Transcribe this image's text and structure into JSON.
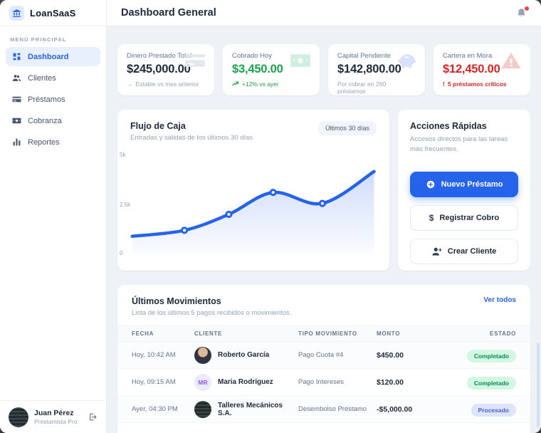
{
  "colors": {
    "accent": "#2563eb",
    "success": "#16a34a",
    "danger": "#dc2626",
    "navy": "#1e293b"
  },
  "sidebar": {
    "logo": {
      "label": "LoanSaaS",
      "icon": "bank-icon"
    },
    "section_label": "MENÚ PRINCIPAL",
    "items": [
      {
        "label": "Dashboard",
        "icon": "dashboard-grid-icon",
        "active": true
      },
      {
        "label": "Clientes",
        "icon": "users-icon",
        "active": false
      },
      {
        "label": "Préstamos",
        "icon": "credit-card-icon",
        "active": false
      },
      {
        "label": "Cobranza",
        "icon": "banknote-icon",
        "active": false
      },
      {
        "label": "Reportes",
        "icon": "bar-chart-icon",
        "active": false
      }
    ],
    "user": {
      "name": "Juan Pérez",
      "role": "Prestamista Pro",
      "logout_icon": "logout-icon"
    }
  },
  "header": {
    "title": "Dashboard General",
    "notification_icon": "bell-icon",
    "has_alert_dot": true
  },
  "stats": [
    {
      "label": "Dinero Prestado Total",
      "value": "$245,000.00",
      "sub_glyph": "→",
      "sub": "Estable vs mes anterior",
      "bg_icon": "credit-card-icon",
      "value_color": "#1e293b",
      "sub_color": "#94a3b8",
      "bg_icon_color": "#e3e8ef"
    },
    {
      "label": "Cobrado Hoy",
      "value": "$3,450.00",
      "sub_glyph": "",
      "sub": "+12% vs ayer",
      "bg_icon": "banknote-icon",
      "value_color": "#16a34a",
      "sub_color": "#16a34a",
      "bg_icon_color": "#cfeedd"
    },
    {
      "label": "Capital Pendiente",
      "value": "$142,800.00",
      "sub_glyph": "",
      "sub": "Por cobrar en 260 préstamos",
      "bg_icon": "piggy-bank-icon",
      "value_color": "#1e293b",
      "sub_color": "#94a3b8",
      "bg_icon_color": "#d8e3fb"
    },
    {
      "label": "Cartera en Mora",
      "value": "$12,450.00",
      "sub_glyph": "!",
      "sub": "5 préstamos críticos",
      "bg_icon": "warning-triangle-icon",
      "value_color": "#dc2626",
      "sub_color": "#dc2626",
      "bg_icon_color": "#f6caca"
    }
  ],
  "cashflow": {
    "title": "Flujo de Caja",
    "subtitle": "Entradas y salidas de los últimos 30 días",
    "badge": "Últimos 30 días"
  },
  "chart_data": {
    "type": "area",
    "title": "Flujo de Caja",
    "xlabel": "últimos 30 días",
    "ylabel": "",
    "ylim": [
      0,
      5000
    ],
    "yticks": [
      "5k",
      "2.5k",
      "0"
    ],
    "grid": false,
    "legend": false,
    "line_color": "#2563eb",
    "points": [
      {
        "x_pct": 0.8,
        "value": 900,
        "marker": false
      },
      {
        "x_pct": 22,
        "value": 1200,
        "marker": true
      },
      {
        "x_pct": 40,
        "value": 2000,
        "marker": true
      },
      {
        "x_pct": 58,
        "value": 3100,
        "marker": true
      },
      {
        "x_pct": 78,
        "value": 2550,
        "marker": true
      },
      {
        "x_pct": 99,
        "value": 4150,
        "marker": false
      }
    ]
  },
  "actions": {
    "title": "Acciones Rápidas",
    "subtitle": "Accesos directos para las tareas más frecuentes.",
    "buttons": [
      {
        "label": "Nuevo Préstamo",
        "icon": "plus-circle-icon",
        "style": "primary"
      },
      {
        "label": "Registrar Cobro",
        "icon": "dollar-icon",
        "glyph": "$",
        "style": "secondary"
      },
      {
        "label": "Crear Cliente",
        "icon": "user-plus-icon",
        "style": "secondary"
      }
    ]
  },
  "movements": {
    "title": "Últimos Movimientos",
    "subtitle": "Lista de los últimos 5 pagos recibidos o movimientos.",
    "link": "Ver todos",
    "columns": [
      "FECHA",
      "CLIENTE",
      "TIPO MOVIMIENTO",
      "MONTO",
      "ESTADO"
    ],
    "rows": [
      {
        "fecha": "Hoy, 10:42 AM",
        "cliente": "Roberto García",
        "avatar": "photo-person",
        "avatar_initials": "",
        "tipo": "Pago Cuota #4",
        "monto": "$450.00",
        "estado": "Completado",
        "estado_type": "green"
      },
      {
        "fecha": "Hoy, 09:15 AM",
        "cliente": "Maria Rodríguez",
        "avatar": "initials",
        "avatar_initials": "MR",
        "tipo": "Pago Intereses",
        "monto": "$120.00",
        "estado": "Completado",
        "estado_type": "green"
      },
      {
        "fecha": "Ayer, 04:30 PM",
        "cliente": "Talleres Mecánicos S.A.",
        "avatar": "photo-industrial",
        "avatar_initials": "",
        "tipo": "Desembolso Préstamo",
        "monto": "-$5,000.00",
        "estado": "Procesado",
        "estado_type": "blue"
      }
    ]
  }
}
